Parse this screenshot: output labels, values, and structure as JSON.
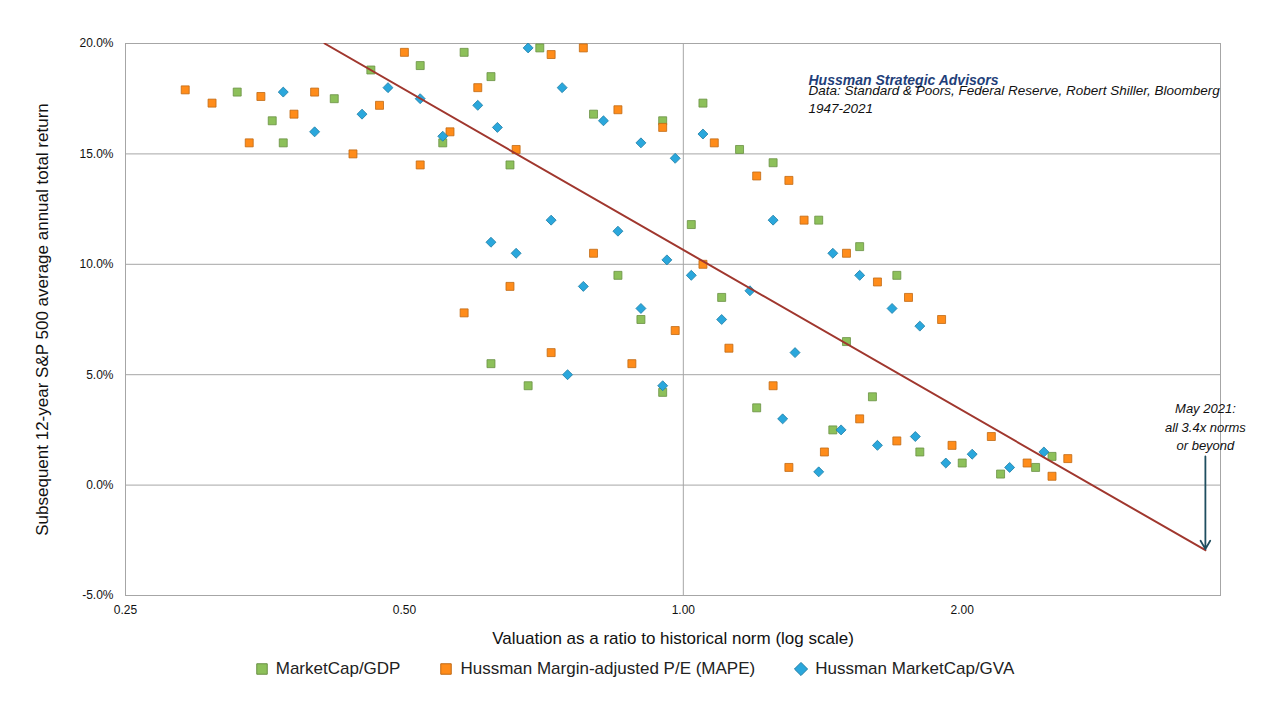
{
  "chart_data": {
    "type": "scatter",
    "x_label": "Valuation as a ratio to historical norm (log scale)",
    "y_label": "Subsequent 12-year S&P 500 average annual total return",
    "log": "x",
    "grid": true,
    "legend": "bottom",
    "xlim": [
      0.25,
      3.8
    ],
    "xticks": [
      0.25,
      {
        "value": 0.5,
        "label": "0.50"
      },
      {
        "value": 1,
        "label": "1.00"
      },
      {
        "value": 2,
        "label": "2.00"
      }
    ],
    "ylim": [
      -5,
      20
    ],
    "yticks": [
      {
        "value": -5,
        "label": "-5.0%"
      },
      {
        "value": 0,
        "label": "0.0%"
      },
      {
        "value": 5,
        "label": "5.0%"
      },
      {
        "value": 10,
        "label": "10.0%"
      },
      {
        "value": 15,
        "label": "15.0%"
      },
      {
        "value": 20,
        "label": "20.0%"
      }
    ],
    "vlines": [
      1
    ],
    "texts": [
      "Hussman Strategic Advisors",
      "Data: Standard & Poors, Federal Reserve, Robert Shiller, Bloomberg",
      "1947-2021"
    ],
    "annotation": {
      "text": "May 2021:\nall 3.4x norms\nor beyond",
      "x": 3.66,
      "y": 1.3,
      "arrow_y": -2.9
    },
    "trend_line": {
      "x": [
        0.41,
        3.66
      ],
      "values": [
        20,
        -2.95
      ],
      "color": "#a0372e"
    },
    "series": [
      {
        "name": "MarketCap/GDP",
        "color": "#8dc05a",
        "marker": "square",
        "x": [
          0.33,
          0.36,
          0.37,
          0.42,
          0.46,
          0.52,
          0.58,
          0.62,
          0.7,
          0.55,
          0.65,
          0.8,
          0.95,
          1.05,
          1.15,
          1.25,
          0.62,
          0.68,
          0.85,
          0.95,
          1.02,
          1.1,
          1.4,
          1.55,
          1.7,
          1.5,
          1.45,
          1.6,
          1.8,
          2.0,
          2.2,
          2.5,
          2.4,
          0.9,
          1.2
        ],
        "values": [
          17.8,
          16.5,
          15.5,
          17.5,
          18.8,
          19.0,
          19.6,
          18.5,
          19.8,
          15.5,
          14.5,
          16.8,
          16.5,
          17.3,
          15.2,
          14.6,
          5.5,
          4.5,
          9.5,
          4.2,
          11.8,
          8.5,
          12.0,
          10.8,
          9.5,
          6.5,
          2.5,
          4.0,
          1.5,
          1.0,
          0.5,
          1.3,
          0.8,
          7.5,
          3.5
        ]
      },
      {
        "name": "Hussman Margin-adjusted P/E (MAPE)",
        "color": "#ff8c1a",
        "marker": "square",
        "x": [
          0.29,
          0.31,
          0.34,
          0.35,
          0.38,
          0.4,
          0.44,
          0.47,
          0.5,
          0.52,
          0.56,
          0.6,
          0.66,
          0.72,
          0.78,
          0.85,
          0.95,
          1.08,
          1.2,
          1.3,
          0.58,
          0.65,
          0.72,
          0.8,
          0.88,
          0.98,
          1.05,
          1.12,
          1.25,
          1.35,
          1.5,
          1.62,
          1.75,
          1.9,
          1.42,
          1.55,
          1.7,
          1.95,
          2.15,
          2.35,
          2.5,
          2.6,
          1.3
        ],
        "values": [
          17.9,
          17.3,
          15.5,
          17.6,
          16.8,
          17.8,
          15.0,
          17.2,
          19.6,
          14.5,
          16.0,
          18.0,
          15.2,
          19.5,
          19.8,
          17.0,
          16.2,
          15.5,
          14.0,
          13.8,
          7.8,
          9.0,
          6.0,
          10.5,
          5.5,
          7.0,
          10.0,
          6.2,
          4.5,
          12.0,
          10.5,
          9.2,
          8.5,
          7.5,
          1.5,
          3.0,
          2.0,
          1.8,
          2.2,
          1.0,
          0.4,
          1.2,
          0.8
        ]
      },
      {
        "name": "Hussman MarketCap/GVA",
        "color": "#2aa7dc",
        "marker": "diamond",
        "x": [
          0.37,
          0.4,
          0.45,
          0.48,
          0.52,
          0.55,
          0.6,
          0.63,
          0.68,
          0.74,
          0.82,
          0.9,
          0.98,
          1.05,
          0.62,
          0.66,
          0.72,
          0.78,
          0.85,
          0.9,
          0.96,
          1.02,
          1.1,
          1.18,
          1.25,
          1.32,
          1.45,
          1.55,
          1.68,
          1.8,
          1.28,
          1.4,
          1.48,
          1.62,
          1.78,
          1.92,
          2.05,
          2.25,
          2.45,
          0.75,
          0.95
        ],
        "values": [
          17.8,
          16.0,
          16.8,
          18.0,
          17.5,
          15.8,
          17.2,
          16.2,
          19.8,
          18.0,
          16.5,
          15.5,
          14.8,
          15.9,
          11.0,
          10.5,
          12.0,
          9.0,
          11.5,
          8.0,
          10.2,
          9.5,
          7.5,
          8.8,
          12.0,
          6.0,
          10.5,
          9.5,
          8.0,
          7.2,
          3.0,
          0.6,
          2.5,
          1.8,
          2.2,
          1.0,
          1.4,
          0.8,
          1.5,
          5.0,
          4.5
        ]
      }
    ]
  }
}
